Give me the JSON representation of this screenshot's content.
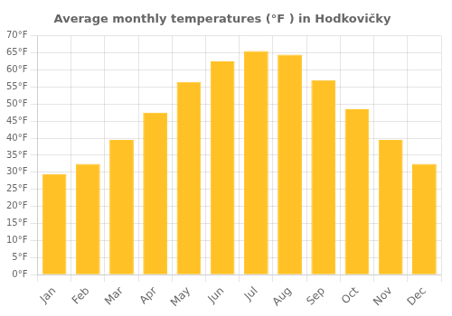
{
  "chart_data": {
    "type": "bar",
    "title": "Average monthly temperatures (°F ) in Hodkovičky",
    "categories": [
      "Jan",
      "Feb",
      "Mar",
      "Apr",
      "May",
      "Jun",
      "Jul",
      "Aug",
      "Sep",
      "Oct",
      "Nov",
      "Dec"
    ],
    "values": [
      29.5,
      32.5,
      39.5,
      47.5,
      56.5,
      62.5,
      65.5,
      64.5,
      57.0,
      48.5,
      39.5,
      32.5
    ],
    "color": "#FFC125",
    "ylim": [
      0,
      70
    ],
    "yticks": [
      {
        "value": 0,
        "label": "0°F"
      },
      {
        "value": 5,
        "label": "5°F"
      },
      {
        "value": 10,
        "label": "10°F"
      },
      {
        "value": 15,
        "label": "15°F"
      },
      {
        "value": 20,
        "label": "20°F"
      },
      {
        "value": 25,
        "label": "25°F"
      },
      {
        "value": 30,
        "label": "30°F"
      },
      {
        "value": 35,
        "label": "35°F"
      },
      {
        "value": 40,
        "label": "40°F"
      },
      {
        "value": 45,
        "label": "45°F"
      },
      {
        "value": 50,
        "label": "50°F"
      },
      {
        "value": 55,
        "label": "55°F"
      },
      {
        "value": 60,
        "label": "60°F"
      },
      {
        "value": 65,
        "label": "65°F"
      },
      {
        "value": 70,
        "label": "70°F"
      }
    ],
    "grid": true
  }
}
